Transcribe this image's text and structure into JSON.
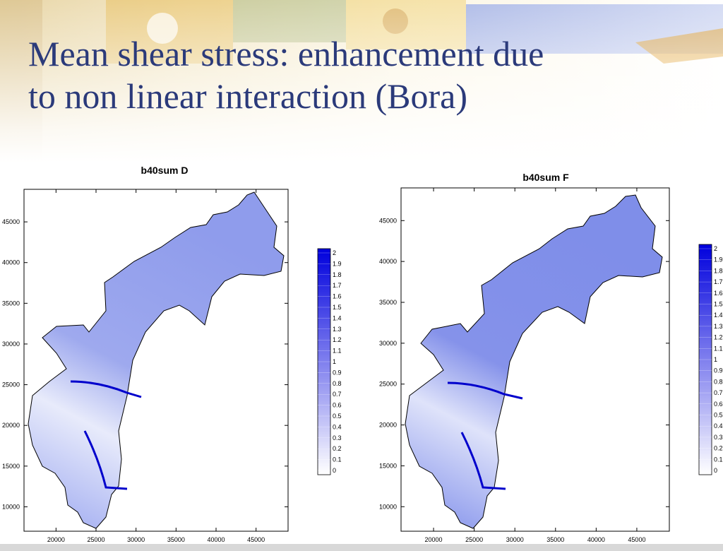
{
  "slide": {
    "title_line1": "Mean shear stress: enhancement due",
    "title_line2": "to non linear interaction (Bora)"
  },
  "colors": {
    "title": "#2b3a7a",
    "scale_low": "#ffffff",
    "scale_high": "#0000dd",
    "outline": "#000000"
  },
  "chart_data": [
    {
      "type": "heatmap",
      "title": "b40sum D",
      "x_ticks": [
        20000,
        25000,
        30000,
        35000,
        40000,
        45000
      ],
      "y_ticks": [
        10000,
        15000,
        20000,
        25000,
        30000,
        35000,
        40000,
        45000
      ],
      "y_tick_labels_visible": [
        "10000",
        "15000",
        "20000",
        "25000",
        "30000",
        "35000",
        "40000",
        "45000"
      ],
      "xlim": [
        16000,
        49000
      ],
      "ylim": [
        7000,
        49000
      ],
      "colorbar": {
        "min": 0,
        "max": 2,
        "labels": [
          "2",
          "1.9",
          "1.8",
          "1.7",
          "1.6",
          "1.5",
          "1.4",
          "1.3",
          "1.2",
          "1.1",
          "1",
          "0.9",
          "0.8",
          "0.7",
          "0.6",
          "0.5",
          "0.4",
          "0.3",
          "0.2",
          "0.1",
          "0"
        ]
      }
    },
    {
      "type": "heatmap",
      "title": "b40sum F",
      "x_ticks": [
        20000,
        25000,
        30000,
        35000,
        40000,
        45000
      ],
      "y_ticks": [
        10000,
        15000,
        20000,
        25000,
        30000,
        35000,
        40000,
        45000
      ],
      "y_tick_labels_visible": [
        "10000",
        "15000",
        "20000",
        "25000",
        "30000",
        "35000",
        "40000",
        "45000"
      ],
      "xlim": [
        16000,
        49000
      ],
      "ylim": [
        7000,
        49000
      ],
      "colorbar": {
        "min": 0,
        "max": 2,
        "labels": [
          "2",
          "1.9",
          "1.8",
          "1.7",
          "1.6",
          "1.5",
          "1.4",
          "1.3",
          "1.2",
          "1.1",
          "1",
          "0.9",
          "0.8",
          "0.7",
          "0.6",
          "0.5",
          "0.4",
          "0.3",
          "0.2",
          "0.1",
          "0"
        ]
      }
    }
  ]
}
